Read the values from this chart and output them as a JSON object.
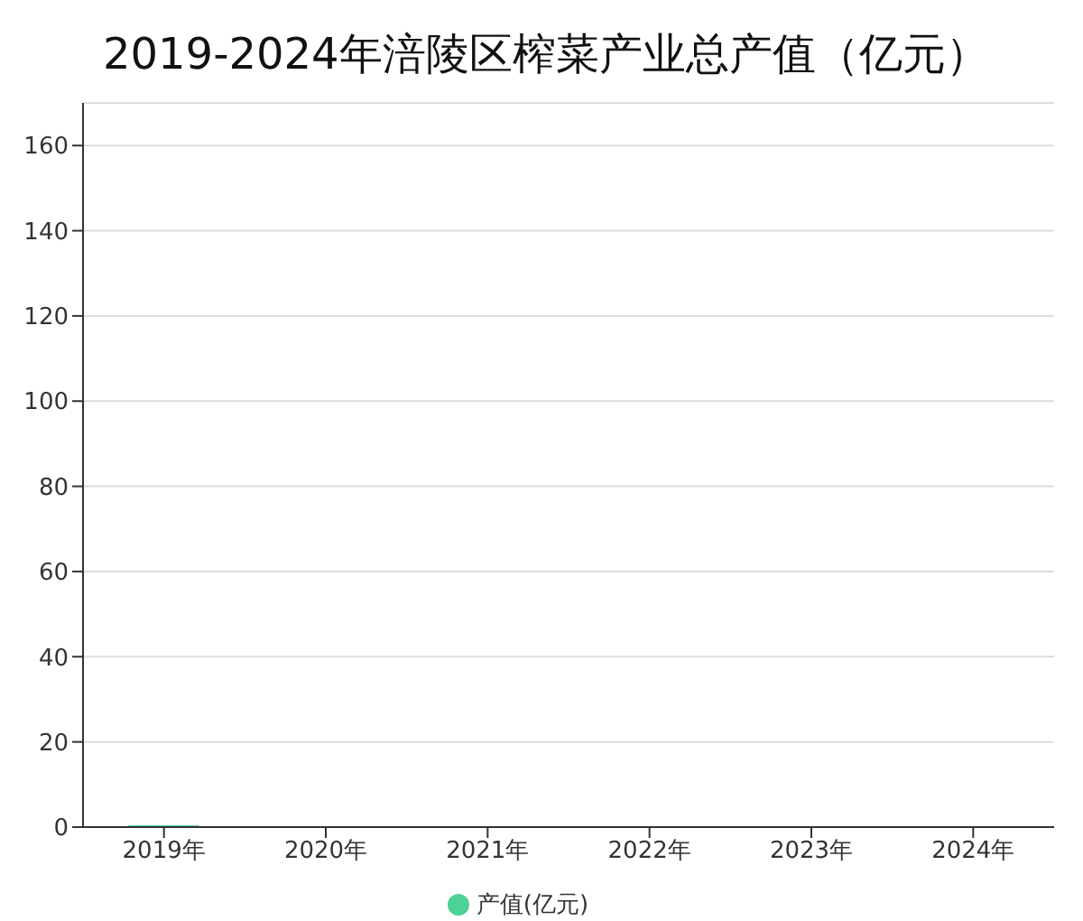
{
  "chart_data": {
    "type": "bar",
    "title": "2019-2024年涪陵区榨菜产业总产值（亿元）",
    "categories": [
      "2019年",
      "2020年",
      "2021年",
      "2022年",
      "2023年",
      "2024年"
    ],
    "series": [
      {
        "name": "产值(亿元)",
        "color": "#4cd295",
        "values": [
          0.4,
          null,
          null,
          null,
          null,
          null
        ]
      }
    ],
    "ylim": [
      0,
      170
    ],
    "yticks": [
      0,
      20,
      40,
      60,
      80,
      100,
      120,
      140,
      160
    ],
    "grid": "y",
    "legend": "bottom"
  }
}
